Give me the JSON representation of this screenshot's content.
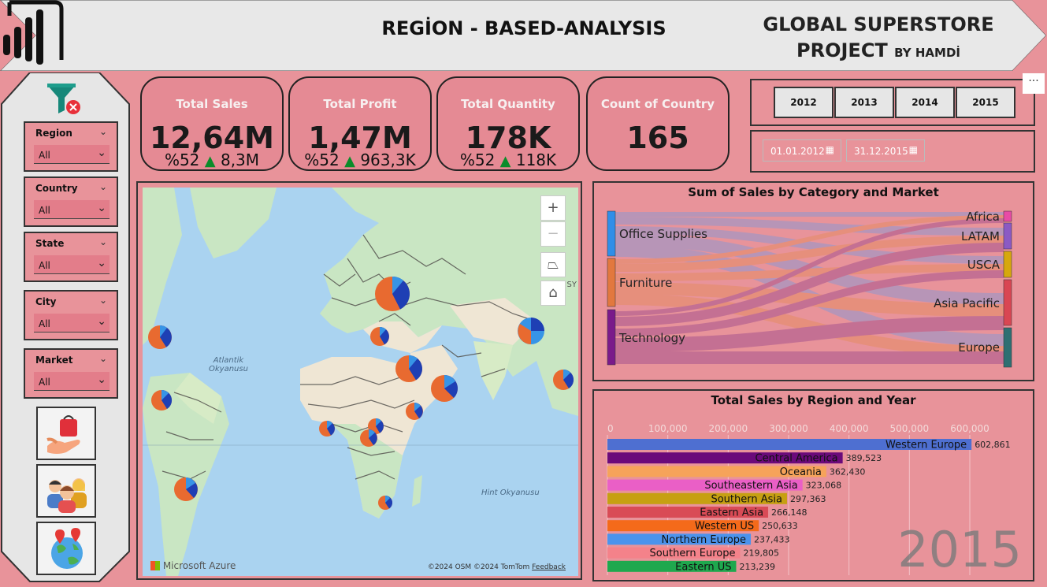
{
  "header": {
    "title": "REGİON - BASED-ANALYSIS",
    "project_line1": "GLOBAL SUPERSTORE",
    "project_line2": "PROJECT",
    "project_by": "BY HAMDİ"
  },
  "filters": [
    {
      "label": "Region",
      "value": "All"
    },
    {
      "label": "Country",
      "value": "All"
    },
    {
      "label": "State",
      "value": "All"
    },
    {
      "label": "City",
      "value": "All"
    },
    {
      "label": "Market",
      "value": "All"
    }
  ],
  "nav_icons": [
    "shopping-bag-icon",
    "people-icon",
    "globe-icon"
  ],
  "kpis": [
    {
      "title": "Total Sales",
      "value": "12,64M",
      "pct": "%52",
      "delta": "8,3M"
    },
    {
      "title": "Total Profit",
      "value": "1,47M",
      "pct": "%52",
      "delta": "963,3K"
    },
    {
      "title": "Total Quantity",
      "value": "178K",
      "pct": "%52",
      "delta": "118K"
    },
    {
      "title": "Count of Country",
      "value": "165"
    }
  ],
  "years": [
    "2012",
    "2013",
    "2014",
    "2015"
  ],
  "date_range": {
    "start": "01.01.2012",
    "end": "31.12.2015"
  },
  "map": {
    "ocean1_line1": "Atlantik",
    "ocean1_line2": "Okyanusu",
    "ocean2": "Hint Okyanusu",
    "provider": "Microsoft Azure",
    "attribution": "©2024 OSM  ©2024 TomTom",
    "feedback": "Feedback",
    "zoom_in": "+",
    "zoom_out": "−",
    "side_label": "SY"
  },
  "sankey": {
    "title": "Sum of Sales by Category and Market",
    "sources": [
      "Office Supplies",
      "Furniture",
      "Technology"
    ],
    "targets": [
      "Africa",
      "LATAM",
      "USCA",
      "Asia Pacific",
      "Europe"
    ],
    "source_colors": [
      "#2f8ee8",
      "#e2783e",
      "#7a1a8a"
    ],
    "target_colors": [
      "#e84ba6",
      "#8b5ac4",
      "#d6a80e",
      "#d94653",
      "#2e6f72"
    ]
  },
  "chart_data": {
    "type": "bar",
    "title": "Total Sales by Region and Year",
    "year": "2015",
    "xlim": [
      0,
      600000
    ],
    "ticks": [
      "0",
      "100,000",
      "200,000",
      "300,000",
      "400,000",
      "500,000",
      "600,000"
    ],
    "categories": [
      "Western Europe",
      "Central America",
      "Oceania",
      "Southeastern Asia",
      "Southern Asia",
      "Eastern Asia",
      "Western US",
      "Northern Europe",
      "Southern Europe",
      "Eastern US"
    ],
    "values": [
      602861,
      389523,
      362430,
      323068,
      297363,
      266148,
      250633,
      237433,
      219805,
      213239
    ],
    "value_labels": [
      "602,861",
      "389,523",
      "362,430",
      "323,068",
      "297,363",
      "266,148",
      "250,633",
      "237,433",
      "219,805",
      "213,239"
    ],
    "colors": [
      "#4e6fd1",
      "#6b0a7a",
      "#f6a35a",
      "#ea5fc6",
      "#c6a012",
      "#d94b56",
      "#f46a1a",
      "#4b93ec",
      "#f4828a",
      "#1fa84e"
    ]
  }
}
